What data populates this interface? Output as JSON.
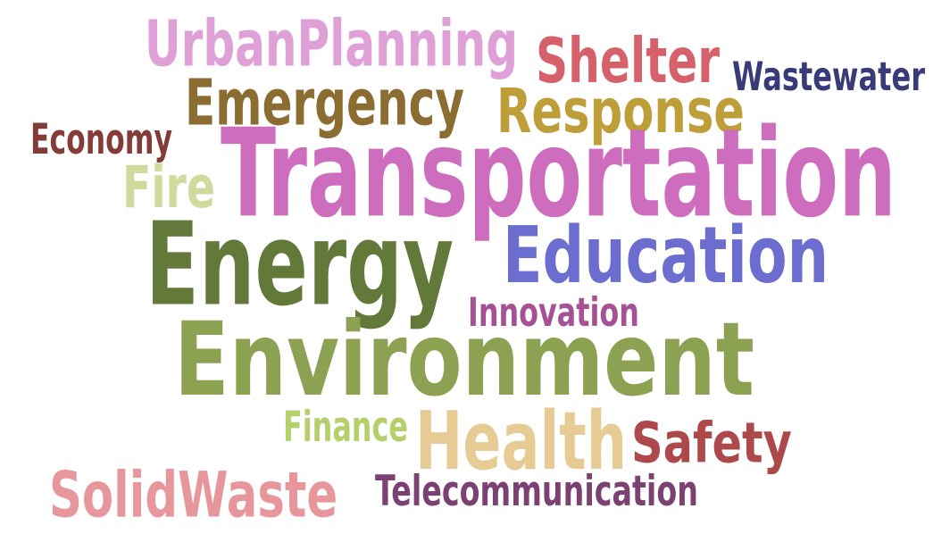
{
  "words": [
    {
      "text": "UrbanPlanning",
      "color": "#df9fd7"
    },
    {
      "text": "Shelter",
      "color": "#d6616b"
    },
    {
      "text": "Wastewater",
      "color": "#393b79"
    },
    {
      "text": "Emergency",
      "color": "#8c6d31"
    },
    {
      "text": "Response",
      "color": "#bd9e39"
    },
    {
      "text": "Economy",
      "color": "#843c39"
    },
    {
      "text": "Transportation",
      "color": "#ce6dbd"
    },
    {
      "text": "Fire",
      "color": "#cedb9c"
    },
    {
      "text": "Energy",
      "color": "#637939"
    },
    {
      "text": "Education",
      "color": "#6b6ecf"
    },
    {
      "text": "Innovation",
      "color": "#a55194"
    },
    {
      "text": "Environment",
      "color": "#8ca252"
    },
    {
      "text": "Finance",
      "color": "#b5cf6b"
    },
    {
      "text": "Health",
      "color": "#e7cb94"
    },
    {
      "text": "Safety",
      "color": "#ad494a"
    },
    {
      "text": "SolidWaste",
      "color": "#e7969c"
    },
    {
      "text": "Telecommunication",
      "color": "#7b4173"
    }
  ]
}
